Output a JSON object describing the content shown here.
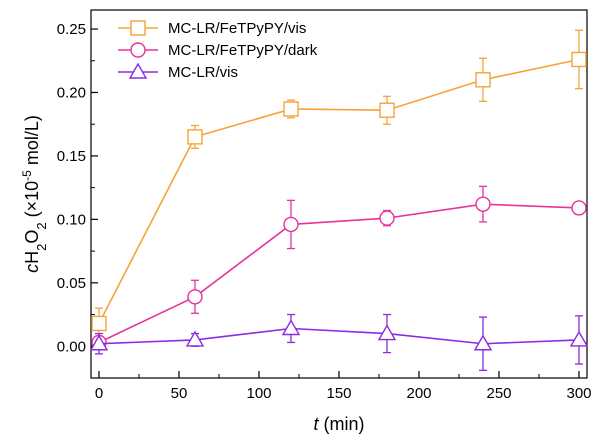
{
  "chart_data": {
    "type": "line",
    "xlabel_italic": "t",
    "xlabel_rest": " (min)",
    "ylabel": {
      "prefix": "c",
      "h": "H",
      "sub1": "2",
      "o": "O",
      "sub2": "2",
      "mid": " (×10",
      "sup": "-5",
      "unit": " mol/L)"
    },
    "xlim": [
      -5,
      305
    ],
    "ylim": [
      -0.025,
      0.265
    ],
    "xticks": [
      0,
      50,
      100,
      150,
      200,
      250,
      300
    ],
    "xtick_labels": [
      "0",
      "50",
      "100",
      "150",
      "200",
      "250",
      "300"
    ],
    "yticks": [
      0.0,
      0.05,
      0.1,
      0.15,
      0.2,
      0.25
    ],
    "ytick_labels": [
      "0.00",
      "0.05",
      "0.10",
      "0.15",
      "0.20",
      "0.25"
    ],
    "legend_position": "top-left",
    "grid": false,
    "series": [
      {
        "name": "MC-LR/FeTPyPY/vis",
        "color": "#F5A33A",
        "marker": "square",
        "x": [
          0,
          60,
          120,
          180,
          240,
          300
        ],
        "y": [
          0.018,
          0.165,
          0.187,
          0.186,
          0.21,
          0.226
        ],
        "err": [
          0.012,
          0.009,
          0.007,
          0.011,
          0.017,
          0.023
        ]
      },
      {
        "name": "MC-LR/FeTPyPY/dark",
        "color": "#E8329B",
        "marker": "circle",
        "x": [
          0,
          60,
          120,
          180,
          240,
          300
        ],
        "y": [
          0.003,
          0.039,
          0.096,
          0.101,
          0.112,
          0.109
        ],
        "err": [
          0.005,
          0.013,
          0.019,
          0.006,
          0.014,
          0.003
        ]
      },
      {
        "name": "MC-LR/vis",
        "color": "#8A2BE2",
        "marker": "triangle",
        "x": [
          0,
          60,
          120,
          180,
          240,
          300
        ],
        "y": [
          0.002,
          0.005,
          0.014,
          0.01,
          0.002,
          0.005
        ],
        "err": [
          0.008,
          0.005,
          0.011,
          0.015,
          0.021,
          0.019
        ]
      }
    ]
  }
}
